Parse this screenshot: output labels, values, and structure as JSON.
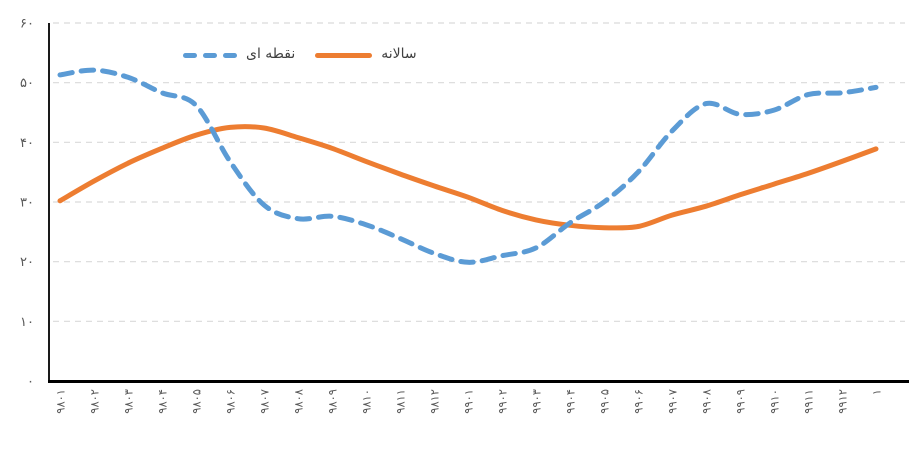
{
  "chart_data": {
    "type": "line",
    "title": "",
    "xlabel": "",
    "ylabel": "",
    "categories": [
      "۹۸۰۱",
      "۹۸۰۲",
      "۹۸۰۳",
      "۹۸۰۴",
      "۹۸۰۵",
      "۹۸۰۶",
      "۹۸۰۷",
      "۹۸۰۸",
      "۹۸۰۹",
      "۹۸۱۰",
      "۹۸۱۱",
      "۹۸۱۲",
      "۹۹۰۱",
      "۹۹۰۲",
      "۹۹۰۳",
      "۹۹۰۴",
      "۹۹۰۵",
      "۹۹۰۶",
      "۹۹۰۷",
      "۹۹۰۸",
      "۹۹۰۹",
      "۹۹۱۰",
      "۹۹۱۱",
      "۹۹۱۲",
      "۱"
    ],
    "series": [
      {
        "name": "نقطه ای",
        "color": "#5B9BD5",
        "line_style": "dashed",
        "values": [
          51.3,
          52.1,
          50.9,
          48.3,
          46.2,
          36.8,
          29.5,
          27.2,
          27.6,
          26.2,
          23.9,
          21.4,
          19.9,
          21.0,
          22.3,
          26.5,
          30.0,
          35.0,
          41.9,
          46.5,
          44.7,
          45.4,
          48.0,
          48.3,
          49.2
        ]
      },
      {
        "name": "سالانه",
        "color": "#ED7D31",
        "line_style": "solid",
        "values": [
          30.2,
          33.5,
          36.5,
          39.0,
          41.2,
          42.5,
          42.4,
          40.8,
          39.0,
          36.8,
          34.7,
          32.7,
          30.8,
          28.6,
          27.0,
          26.1,
          25.7,
          25.9,
          27.8,
          29.3,
          31.2,
          33.0,
          34.8,
          36.8,
          38.9
        ]
      }
    ],
    "ylim": [
      0,
      60
    ],
    "yticks": [
      {
        "value": 0,
        "label": "۰"
      },
      {
        "value": 10,
        "label": "۱۰"
      },
      {
        "value": 20,
        "label": "۲۰"
      },
      {
        "value": 30,
        "label": "۳۰"
      },
      {
        "value": 40,
        "label": "۴۰"
      },
      {
        "value": 50,
        "label": "۵۰"
      },
      {
        "value": 60,
        "label": "۶۰"
      }
    ],
    "grid": "horizontal-dashed",
    "legend_position": "top-center",
    "x_label_rotation": -90,
    "line_smoothing": true
  },
  "colors": {
    "grid": "#D9D9D9",
    "axis": "#000000",
    "tick_label": "#595959",
    "legend_text": "#404040",
    "background": "#FFFFFF"
  }
}
